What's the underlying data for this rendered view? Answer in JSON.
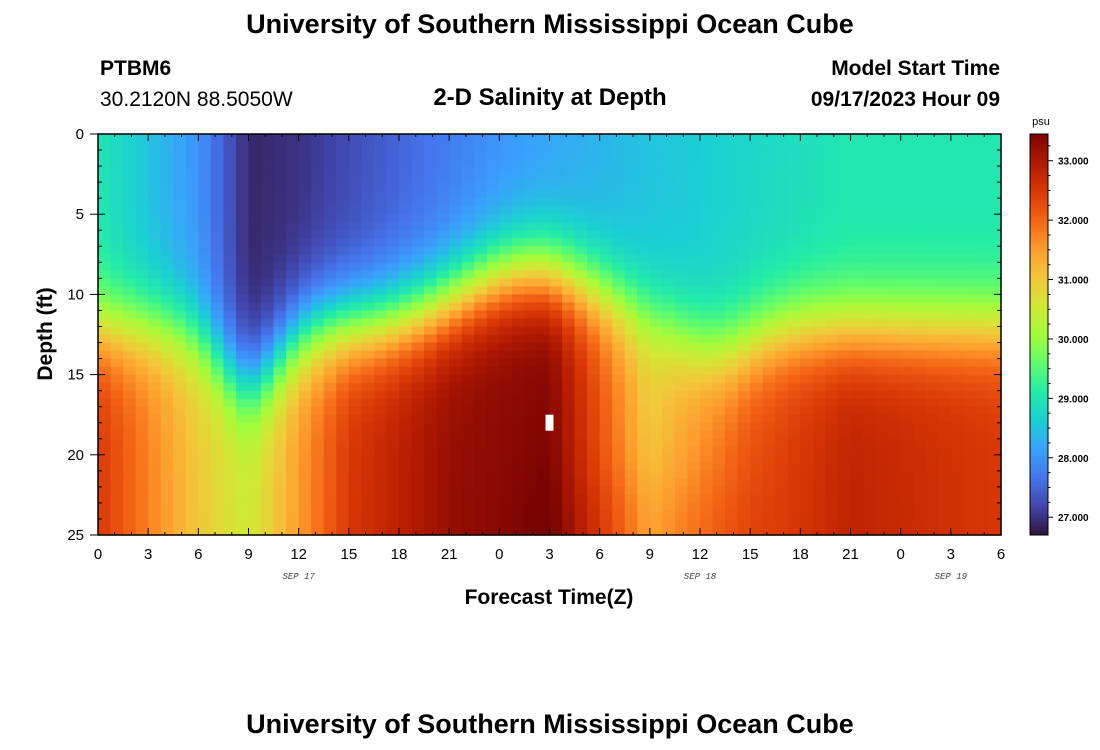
{
  "header": {
    "title": "University of Southern Mississippi Ocean Cube",
    "station_id": "PTBM6",
    "station_coords": "30.2120N  88.5050W",
    "plot_title": "2-D Salinity at Depth",
    "model_label": "Model Start Time",
    "model_time": "09/17/2023 Hour 09"
  },
  "footer": {
    "title": "University of Southern Mississippi Ocean Cube"
  },
  "colors": {
    "stops": [
      "#30123b",
      "#4145ab",
      "#4675ed",
      "#39a2fc",
      "#1bcfd4",
      "#24eca6",
      "#61fc6c",
      "#a4fc3b",
      "#d1e834",
      "#f3c63a",
      "#fe9b2d",
      "#f36315",
      "#d93806",
      "#b11901",
      "#7a0403"
    ],
    "marker": "#ffffff"
  },
  "chart_data": {
    "type": "heatmap",
    "title": "2-D Salinity at Depth",
    "xlabel": "Forecast Time(Z)",
    "ylabel": "Depth (ft)",
    "x_hours": [
      0,
      3,
      6,
      9,
      12,
      15,
      18,
      21,
      24,
      27,
      30,
      33,
      36,
      39,
      42,
      45,
      48,
      51,
      54
    ],
    "x_tick_labels": [
      "0",
      "3",
      "6",
      "9",
      "12",
      "15",
      "18",
      "21",
      "0",
      "3",
      "6",
      "9",
      "12",
      "15",
      "18",
      "21",
      "0",
      "3",
      "6"
    ],
    "date_labels": [
      {
        "hour": 12,
        "text": "SEP 17"
      },
      {
        "hour": 36,
        "text": "SEP 18"
      },
      {
        "hour": 51,
        "text": "SEP 19"
      }
    ],
    "y_ticks": [
      0,
      5,
      10,
      15,
      20,
      25
    ],
    "y_tick_labels": [
      "0",
      "5",
      "10",
      "15",
      "20",
      "25"
    ],
    "ylim": [
      0,
      25
    ],
    "xlim": [
      0,
      54
    ],
    "colorbar": {
      "unit": "psu",
      "min": 26.7,
      "max": 33.45,
      "ticks": [
        33.0,
        32.0,
        31.0,
        30.0,
        29.0,
        28.0,
        27.0
      ],
      "tick_labels": [
        "33.000",
        "32.000",
        "31.000",
        "30.000",
        "29.000",
        "28.000",
        "27.000"
      ]
    },
    "value_note": "Salinity (psu) by depth and forecast hour; low (~26.8-28) in surface layer near hours 6-12, high (~33) at depth 12-25 ft between hours 12-32 and 40-54",
    "surface_profile": [
      {
        "hour": 0,
        "value": 29.0
      },
      {
        "hour": 6,
        "value": 28.0
      },
      {
        "hour": 9,
        "value": 26.9
      },
      {
        "hour": 12,
        "value": 27.0
      },
      {
        "hour": 18,
        "value": 27.5
      },
      {
        "hour": 24,
        "value": 28.0
      },
      {
        "hour": 33,
        "value": 28.5
      },
      {
        "hour": 45,
        "value": 29.0
      },
      {
        "hour": 54,
        "value": 29.0
      }
    ],
    "deep_profile": [
      {
        "hour": 0,
        "value": 32.5
      },
      {
        "hour": 6,
        "value": 31.0
      },
      {
        "hour": 9,
        "value": 30.5
      },
      {
        "hour": 15,
        "value": 32.5
      },
      {
        "hour": 21,
        "value": 33.2
      },
      {
        "hour": 27,
        "value": 33.4
      },
      {
        "hour": 33,
        "value": 31.0
      },
      {
        "hour": 39,
        "value": 32.2
      },
      {
        "hour": 45,
        "value": 32.8
      },
      {
        "hour": 54,
        "value": 32.5
      }
    ],
    "marker_point": {
      "hour": 27,
      "depth": 18
    }
  }
}
